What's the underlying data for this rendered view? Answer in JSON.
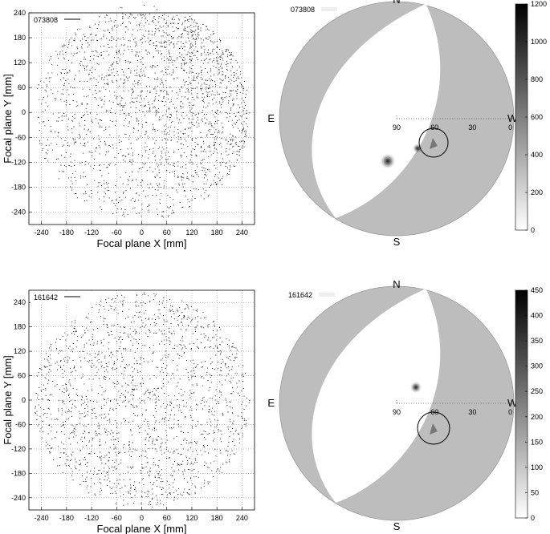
{
  "figure": {
    "panels": [
      {
        "id": "fp1",
        "kind": "focal-plane",
        "legend": "073808",
        "xlabel": "Focal plane X [mm]",
        "ylabel": "Focal plane Y [mm]"
      },
      {
        "id": "sky1",
        "kind": "sky",
        "legend": "073808",
        "compass": {
          "n": "N",
          "s": "S",
          "e": "E",
          "w": "W"
        },
        "zenith_ticks": [
          "90",
          "60",
          "30",
          "0"
        ],
        "colorbar_ticks": [
          "1200",
          "1000",
          "800",
          "600",
          "400",
          "200",
          "0"
        ]
      },
      {
        "id": "fp2",
        "kind": "focal-plane",
        "legend": "161642",
        "xlabel": "Focal plane X [mm]",
        "ylabel": "Focal plane Y [mm]"
      },
      {
        "id": "sky2",
        "kind": "sky",
        "legend": "161642",
        "compass": {
          "n": "N",
          "s": "S",
          "e": "E",
          "w": "W"
        },
        "zenith_ticks": [
          "90",
          "60",
          "30",
          "0"
        ],
        "colorbar_ticks": [
          "450",
          "400",
          "350",
          "300",
          "250",
          "200",
          "150",
          "100",
          "50",
          "0"
        ]
      }
    ]
  },
  "chart_data": [
    {
      "type": "scatter",
      "title": "",
      "legend": "073808",
      "xlabel": "Focal plane X [mm]",
      "ylabel": "Focal plane Y [mm]",
      "xlim": [
        -270,
        270
      ],
      "ylim": [
        -270,
        240
      ],
      "xticks": [
        -240,
        -180,
        -120,
        -60,
        0,
        60,
        120,
        180,
        240
      ],
      "yticks": [
        -240,
        -180,
        -120,
        -60,
        0,
        60,
        120,
        180,
        240
      ],
      "grid": true,
      "density_note": "denser toward upper right"
    },
    {
      "type": "heatmap",
      "legend": "073808",
      "colorbar_range": [
        0,
        1200
      ],
      "colorbar_ticks": [
        0,
        200,
        400,
        600,
        800,
        1000,
        1200
      ]
    },
    {
      "type": "scatter",
      "title": "",
      "legend": "161642",
      "xlabel": "Focal plane X [mm]",
      "ylabel": "Focal plane Y [mm]",
      "xlim": [
        -270,
        270
      ],
      "ylim": [
        -270,
        270
      ],
      "xticks": [
        -240,
        -180,
        -120,
        -60,
        0,
        60,
        120,
        180,
        240
      ],
      "yticks": [
        -240,
        -180,
        -120,
        -60,
        0,
        60,
        120,
        180,
        240
      ],
      "grid": true,
      "density_note": "roughly uniform"
    },
    {
      "type": "heatmap",
      "legend": "161642",
      "colorbar_range": [
        0,
        450
      ],
      "colorbar_ticks": [
        0,
        50,
        100,
        150,
        200,
        250,
        300,
        350,
        400,
        450
      ]
    }
  ]
}
